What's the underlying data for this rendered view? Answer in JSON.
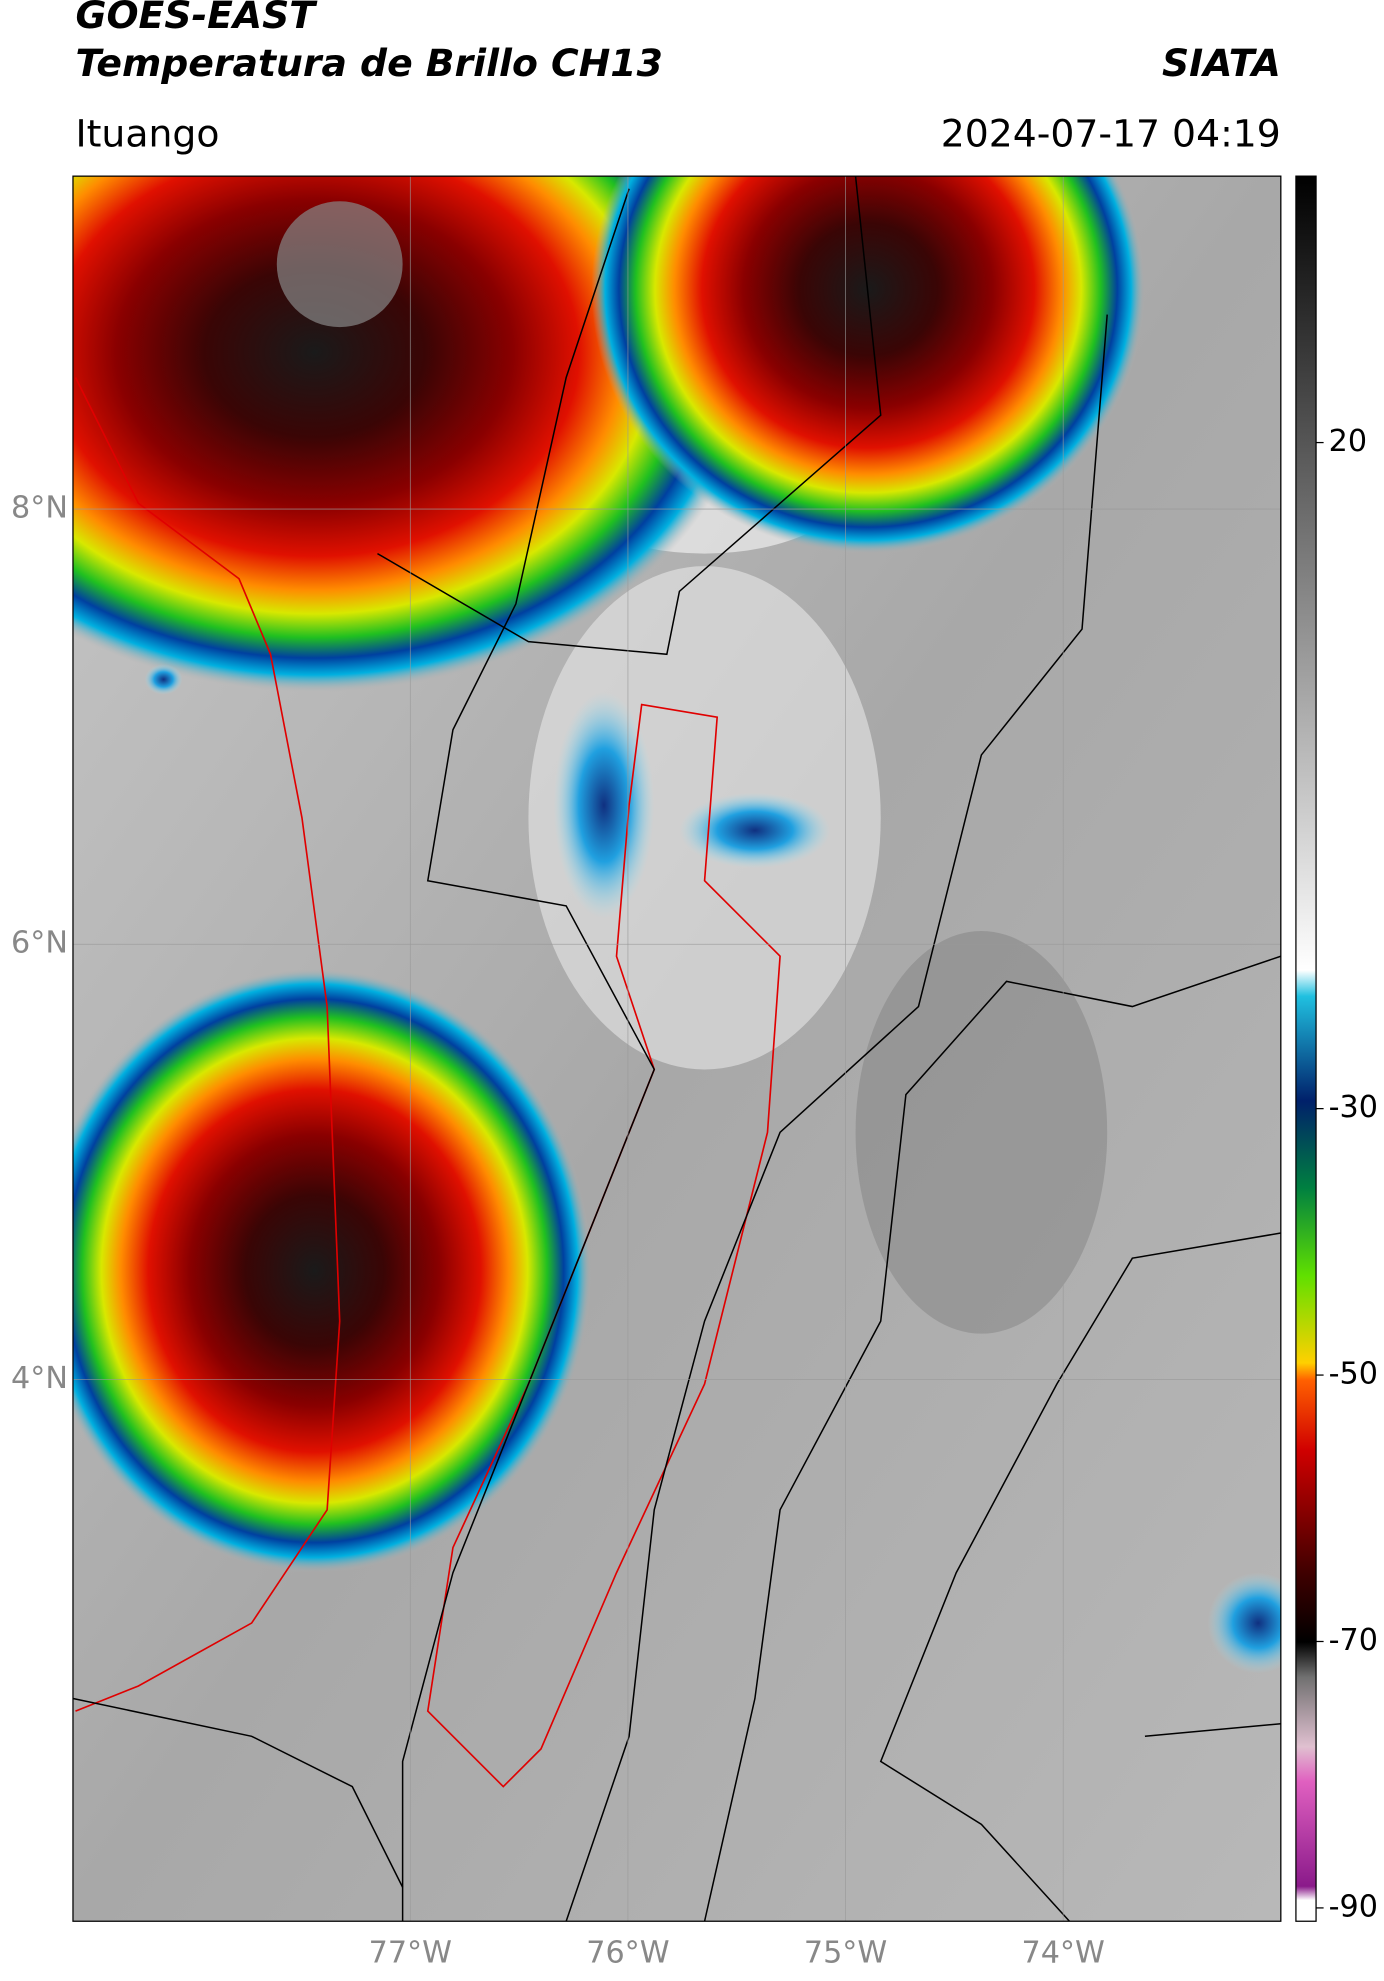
{
  "header": {
    "line1": "GOES-EAST",
    "line2": "Temperatura de Brillo CH13",
    "org": "SIATA",
    "location": "Ituango",
    "datetime": "2024-07-17 04:19"
  },
  "map": {
    "xlim": [
      -78.55,
      -73.0
    ],
    "ylim": [
      1.51,
      9.53
    ],
    "xticks": [
      {
        "value": -77,
        "label": "77°W"
      },
      {
        "value": -76,
        "label": "76°W"
      },
      {
        "value": -75,
        "label": "75°W"
      },
      {
        "value": -74,
        "label": "74°W"
      }
    ],
    "yticks": [
      {
        "value": 8,
        "label": "8°N"
      },
      {
        "value": 6,
        "label": "6°N"
      },
      {
        "value": 4,
        "label": "4°N"
      }
    ]
  },
  "colorbar": {
    "lim": [
      -91,
      40
    ],
    "ticks": [
      20,
      -30,
      -50,
      -70,
      -90
    ]
  }
}
